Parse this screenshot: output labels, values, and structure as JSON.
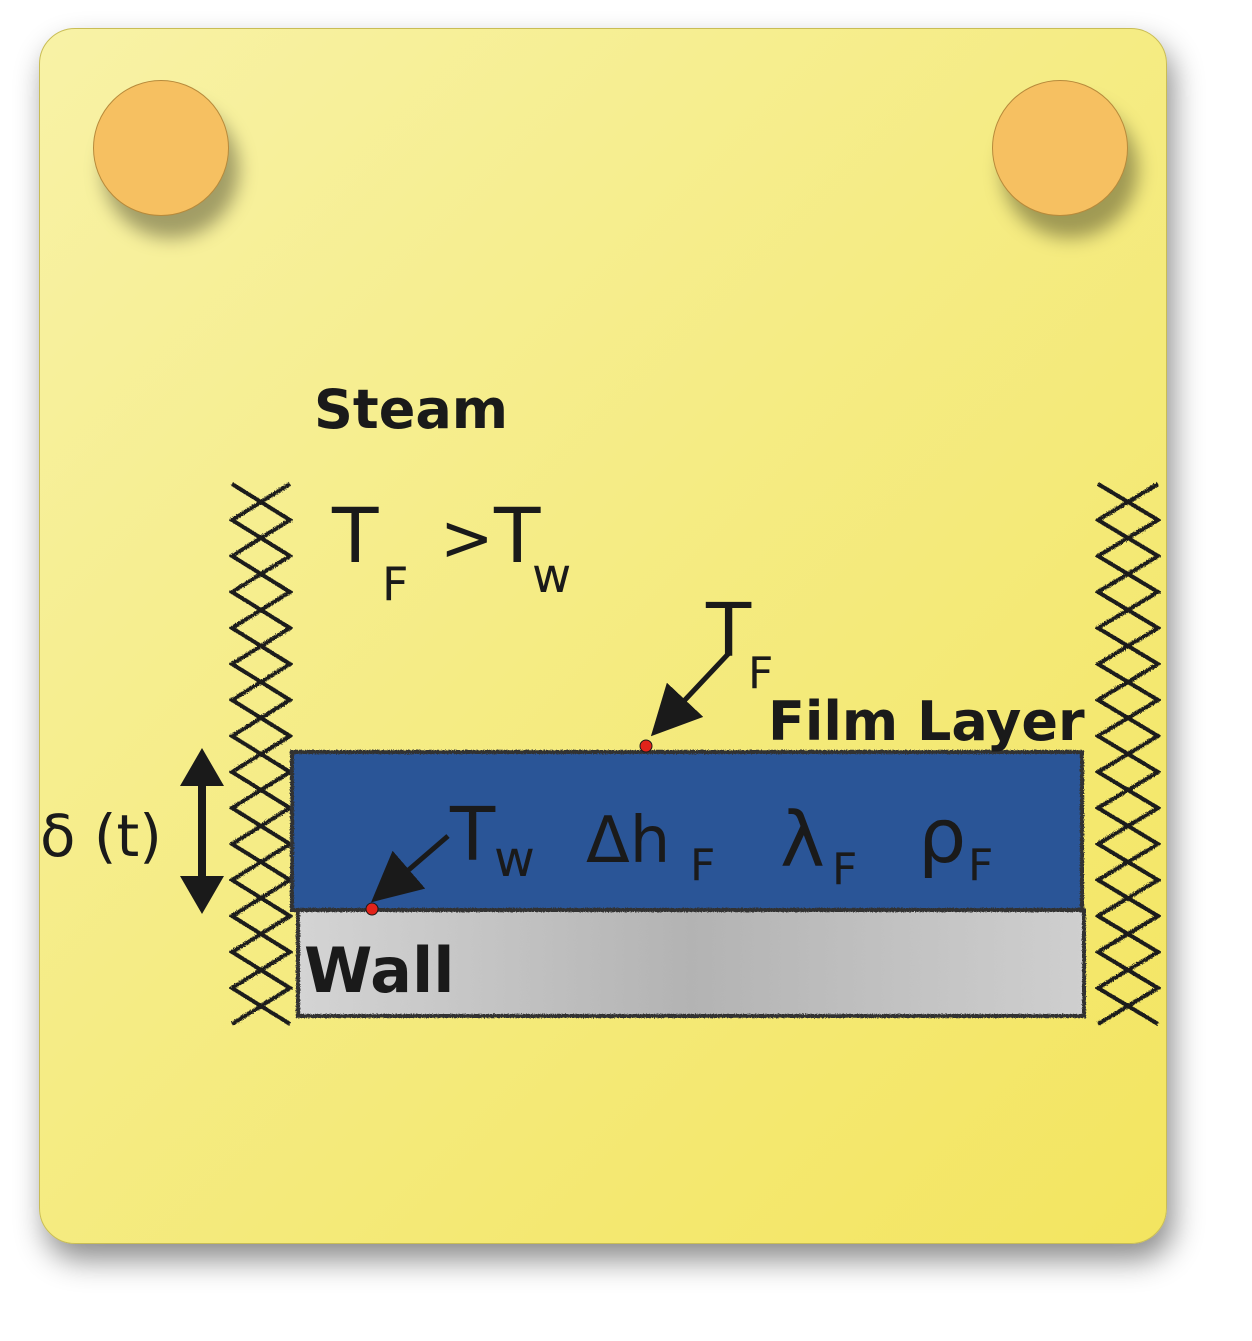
{
  "labels": {
    "steam": "Steam",
    "film_layer": "Film Layer",
    "wall": "Wall",
    "delta": "δ (t)"
  },
  "condition": {
    "t": "T",
    "sub_f": "F",
    "gt": ">",
    "sub_w": "w"
  },
  "film_props": {
    "t": "T",
    "sub_w": "w",
    "delta_h": "Δh",
    "lambda": "λ",
    "rho": "ρ",
    "sub_f": "F"
  },
  "colors": {
    "card": "#f5ec85",
    "pin": "#f6c061",
    "film": "#2a5597",
    "wall": "#bdbdbd",
    "marker": "#e2231a"
  }
}
